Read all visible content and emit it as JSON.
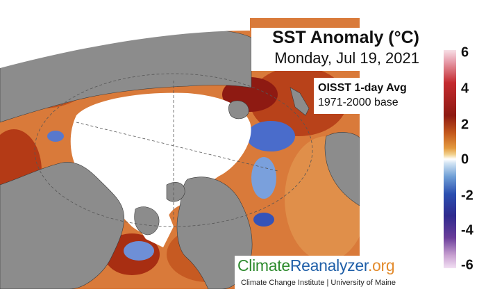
{
  "header": {
    "title": "SST Anomaly (°C)",
    "date": "Monday, Jul 19, 2021",
    "product": "OISST 1-day Avg",
    "base_period": "1971-2000 base"
  },
  "colorbar": {
    "ticks": [
      "6",
      "4",
      "2",
      "0",
      "-2",
      "-4",
      "-6"
    ],
    "range": [
      -6,
      6
    ]
  },
  "logo": {
    "climate": "Climate",
    "reanalyzer": "Reanalyzer",
    "org": ".org",
    "credit": "Climate Change Institute | University of Maine"
  },
  "colors": {
    "land": "#8c8c8c",
    "sea_ice": "#ffffff",
    "warm": "#c8501c",
    "cold": "#3553b8"
  }
}
